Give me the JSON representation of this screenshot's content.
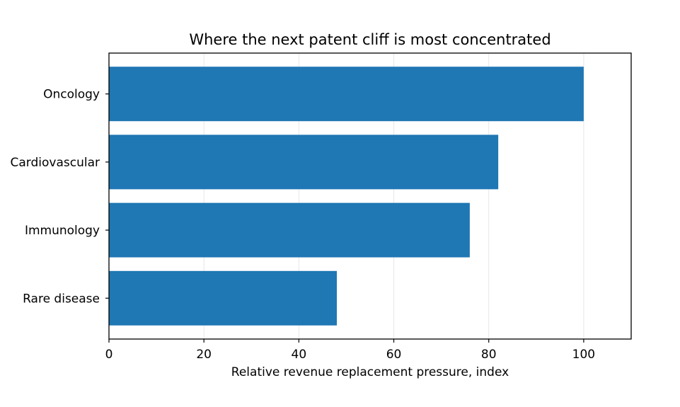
{
  "chart_data": {
    "type": "bar",
    "orientation": "horizontal",
    "title": "Where the next patent cliff is most concentrated",
    "xlabel": "Relative revenue replacement pressure, index",
    "ylabel": "",
    "categories": [
      "Oncology",
      "Cardiovascular",
      "Immunology",
      "Rare disease"
    ],
    "values": [
      100,
      82,
      76,
      48
    ],
    "xlim": [
      0,
      110
    ],
    "xticks": [
      0,
      20,
      40,
      60,
      80,
      100
    ],
    "xtick_labels": [
      "0",
      "20",
      "40",
      "60",
      "80",
      "100"
    ],
    "grid": "vertical",
    "legend": "none",
    "bar_color": "#1f77b4",
    "grid_color": "#e6e6e6"
  }
}
